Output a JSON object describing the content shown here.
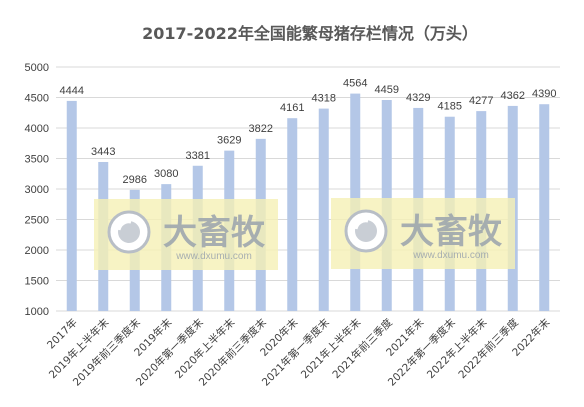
{
  "chart_data": {
    "type": "bar",
    "title": "2017-2022年全国能繁母猪存栏情况（万头）",
    "categories": [
      "2017年",
      "2019年上半年末",
      "2019年前三季度末",
      "2019年末",
      "2020年第一季度末",
      "2020年上半年末",
      "2020年前三季度末",
      "2020年末",
      "2021年第一季度末",
      "2021年上半年末",
      "2021年前三季度",
      "2021年末",
      "2022年第一季度末",
      "2022年上半年末",
      "2022年前三季度",
      "2022年末"
    ],
    "values": [
      4444,
      3443,
      2986,
      3080,
      3381,
      3629,
      3822,
      4161,
      4318,
      4564,
      4459,
      4329,
      4185,
      4277,
      4362,
      4390
    ],
    "ylim": [
      1000,
      5000
    ],
    "yticks": [
      1000,
      1500,
      2000,
      2500,
      3000,
      3500,
      4000,
      4500,
      5000
    ],
    "grid": true,
    "legend": "none",
    "bar_color": "#b4c7e7",
    "grid_color": "#d9d9d9"
  },
  "watermark": {
    "brand_text": "大畜牧",
    "url_text": "www.dxumu.com",
    "box_color": "#f5f0b5"
  }
}
